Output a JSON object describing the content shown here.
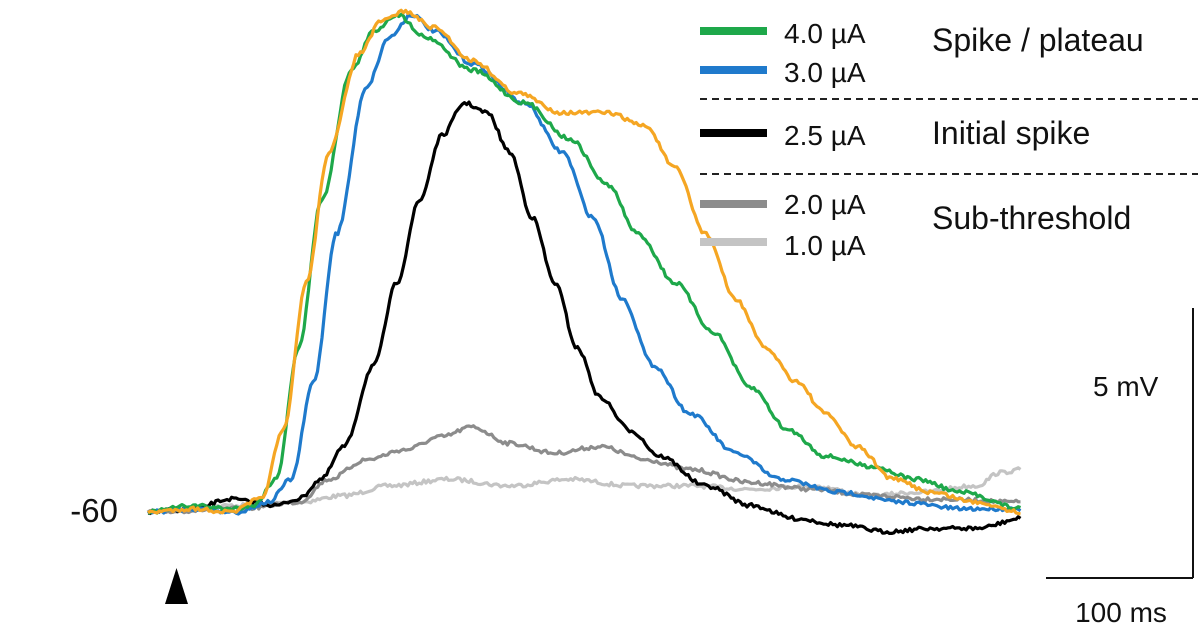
{
  "chart_data": {
    "type": "line",
    "title": "",
    "xlabel": "",
    "ylabel": "",
    "baseline_label": "-60",
    "stimulus_marker": "arrowhead",
    "scale_bars": {
      "y_label": "5 mV",
      "x_label": "100 ms"
    },
    "xlim": [
      0,
      580
    ],
    "ylim": [
      -61.5,
      -44
    ],
    "series": [
      {
        "legend": "4.0 µA",
        "color": "#1ea84a",
        "group": "Spike / plateau",
        "points": [
          [
            0,
            -60
          ],
          [
            30,
            -59.8
          ],
          [
            55,
            -59.9
          ],
          [
            70,
            -59.8
          ],
          [
            85,
            -59
          ],
          [
            100,
            -55
          ],
          [
            115,
            -50.5
          ],
          [
            135,
            -46.5
          ],
          [
            150,
            -45.3
          ],
          [
            165,
            -44.8
          ],
          [
            185,
            -45.5
          ],
          [
            215,
            -46.5
          ],
          [
            250,
            -47.5
          ],
          [
            280,
            -48.6
          ],
          [
            305,
            -50
          ],
          [
            325,
            -51.5
          ],
          [
            350,
            -53
          ],
          [
            375,
            -54.5
          ],
          [
            400,
            -56.2
          ],
          [
            425,
            -57.5
          ],
          [
            450,
            -58.3
          ],
          [
            480,
            -58.6
          ],
          [
            510,
            -59
          ],
          [
            540,
            -59.4
          ],
          [
            580,
            -59.9
          ]
        ]
      },
      {
        "legend": "3.0 µA",
        "color": "#1f7acc",
        "group": "Spike / plateau",
        "points": [
          [
            0,
            -60
          ],
          [
            30,
            -59.9
          ],
          [
            60,
            -60
          ],
          [
            80,
            -59.7
          ],
          [
            95,
            -59
          ],
          [
            110,
            -56
          ],
          [
            125,
            -51.5
          ],
          [
            145,
            -47
          ],
          [
            160,
            -45.5
          ],
          [
            175,
            -44.8
          ],
          [
            190,
            -45.3
          ],
          [
            215,
            -46.3
          ],
          [
            250,
            -47.5
          ],
          [
            275,
            -49
          ],
          [
            295,
            -51
          ],
          [
            315,
            -53.5
          ],
          [
            335,
            -55.5
          ],
          [
            360,
            -57
          ],
          [
            390,
            -58.2
          ],
          [
            420,
            -59
          ],
          [
            460,
            -59.4
          ],
          [
            500,
            -59.7
          ],
          [
            540,
            -59.9
          ],
          [
            580,
            -59.9
          ]
        ]
      },
      {
        "legend": "2.5 µA",
        "color": "#000000",
        "group": "Initial spike",
        "points": [
          [
            0,
            -60
          ],
          [
            30,
            -59.9
          ],
          [
            55,
            -59.6
          ],
          [
            70,
            -59.7
          ],
          [
            85,
            -59.8
          ],
          [
            100,
            -59.6
          ],
          [
            115,
            -59
          ],
          [
            130,
            -58
          ],
          [
            150,
            -55.5
          ],
          [
            165,
            -53
          ],
          [
            180,
            -50.5
          ],
          [
            195,
            -48.5
          ],
          [
            210,
            -47.5
          ],
          [
            225,
            -47.8
          ],
          [
            240,
            -49
          ],
          [
            255,
            -51
          ],
          [
            270,
            -53
          ],
          [
            285,
            -55
          ],
          [
            300,
            -56.5
          ],
          [
            320,
            -57.5
          ],
          [
            340,
            -58.3
          ],
          [
            370,
            -59.2
          ],
          [
            400,
            -59.8
          ],
          [
            430,
            -60.2
          ],
          [
            460,
            -60.4
          ],
          [
            490,
            -60.6
          ],
          [
            520,
            -60.5
          ],
          [
            550,
            -60.5
          ],
          [
            580,
            -60.2
          ]
        ]
      },
      {
        "legend": "2.0 µA",
        "color": "#8c8c8c",
        "group": "Sub-threshold",
        "points": [
          [
            0,
            -60
          ],
          [
            60,
            -59.9
          ],
          [
            100,
            -59.7
          ],
          [
            120,
            -59
          ],
          [
            145,
            -58.4
          ],
          [
            170,
            -58.1
          ],
          [
            195,
            -57.7
          ],
          [
            215,
            -57.4
          ],
          [
            240,
            -57.9
          ],
          [
            270,
            -58.2
          ],
          [
            300,
            -58
          ],
          [
            330,
            -58.4
          ],
          [
            360,
            -58.7
          ],
          [
            400,
            -59.1
          ],
          [
            440,
            -59.3
          ],
          [
            480,
            -59.5
          ],
          [
            520,
            -59.6
          ],
          [
            580,
            -59.7
          ]
        ]
      },
      {
        "legend": "1.0 µA",
        "color": "#c4c4c4",
        "group": "Sub-threshold",
        "points": [
          [
            0,
            -60
          ],
          [
            60,
            -59.8
          ],
          [
            100,
            -59.7
          ],
          [
            130,
            -59.5
          ],
          [
            160,
            -59.2
          ],
          [
            200,
            -59
          ],
          [
            240,
            -59.2
          ],
          [
            280,
            -59
          ],
          [
            320,
            -59.2
          ],
          [
            360,
            -59.2
          ],
          [
            400,
            -59.3
          ],
          [
            440,
            -59.2
          ],
          [
            480,
            -59.5
          ],
          [
            510,
            -59.4
          ],
          [
            550,
            -59.2
          ],
          [
            565,
            -58.8
          ],
          [
            580,
            -58.7
          ]
        ]
      },
      {
        "legend": "",
        "color": "#f5a623",
        "group": "Spike / plateau",
        "points": [
          [
            0,
            -60
          ],
          [
            30,
            -59.9
          ],
          [
            55,
            -60
          ],
          [
            75,
            -59.6
          ],
          [
            90,
            -57.5
          ],
          [
            105,
            -53
          ],
          [
            120,
            -49
          ],
          [
            140,
            -46
          ],
          [
            155,
            -45
          ],
          [
            170,
            -44.7
          ],
          [
            190,
            -45.2
          ],
          [
            215,
            -46.2
          ],
          [
            245,
            -47.2
          ],
          [
            275,
            -47.8
          ],
          [
            305,
            -47.8
          ],
          [
            330,
            -48.2
          ],
          [
            350,
            -49.5
          ],
          [
            370,
            -51.5
          ],
          [
            390,
            -53.5
          ],
          [
            410,
            -55
          ],
          [
            430,
            -56
          ],
          [
            450,
            -57
          ],
          [
            470,
            -58
          ],
          [
            495,
            -59
          ],
          [
            520,
            -59.4
          ],
          [
            550,
            -59.7
          ],
          [
            580,
            -60
          ]
        ]
      }
    ],
    "legend": {
      "placement": "top-right",
      "groups": [
        {
          "label": "Spike / plateau",
          "entries": [
            "4.0 µA",
            "3.0 µA"
          ]
        },
        {
          "label": "Initial spike",
          "entries": [
            "2.5 µA"
          ]
        },
        {
          "label": "Sub-threshold",
          "entries": [
            "2.0 µA",
            "1.0 µA"
          ]
        }
      ]
    }
  }
}
